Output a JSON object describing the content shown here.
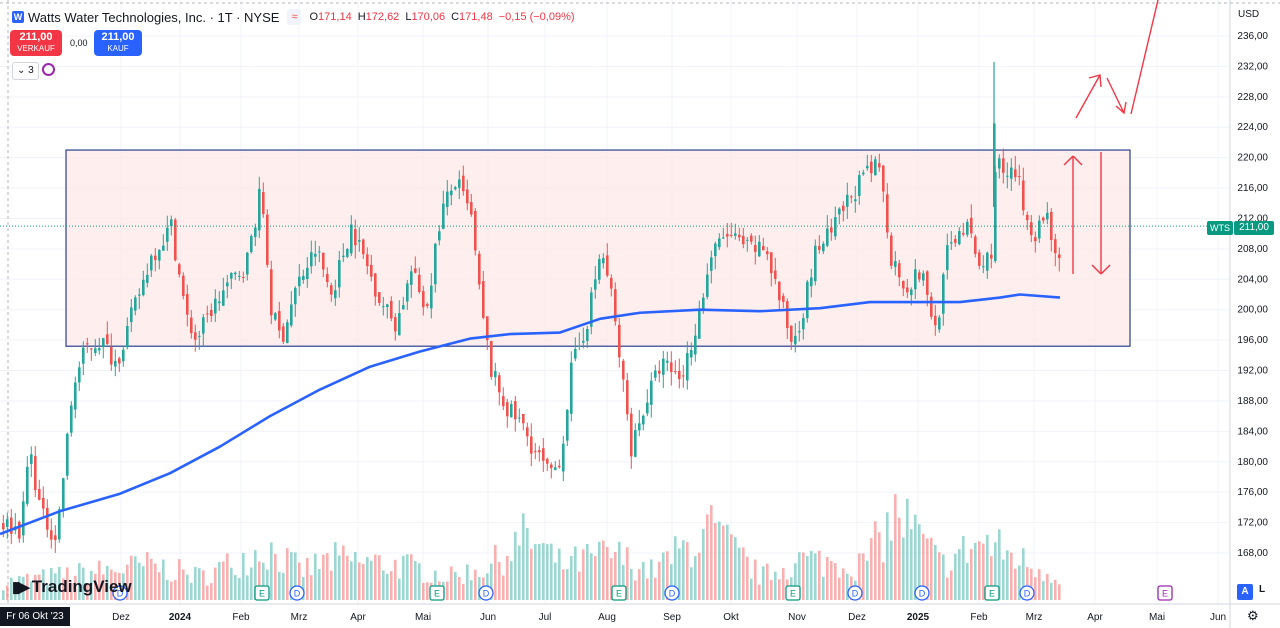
{
  "header": {
    "logo_icon": "watts-logo-icon",
    "title": "Watts Water Technologies, Inc. · 1T · NYSE",
    "tag": "≈",
    "ohlc": {
      "open_label": "O",
      "open": "171,14",
      "high_label": "H",
      "high": "172,62",
      "low_label": "L",
      "low": "170,06",
      "close_label": "C",
      "close": "171,48",
      "change": "−0,15 (−0,09%)"
    }
  },
  "trade": {
    "sell_price": "211,00",
    "sell_label": "VERKAUF",
    "spread": "0,00",
    "buy_price": "211,00",
    "buy_label": "KAUF"
  },
  "indicators": {
    "count_label": "3"
  },
  "axis": {
    "currency": "USD",
    "price_ticks": [
      "236,00",
      "232,00",
      "228,00",
      "224,00",
      "220,00",
      "216,00",
      "212,00",
      "208,00",
      "204,00",
      "200,00",
      "196,00",
      "192,00",
      "188,00",
      "184,00",
      "180,00",
      "176,00",
      "172,00",
      "168,00"
    ],
    "price_tick_values": [
      236,
      232,
      228,
      224,
      220,
      216,
      212,
      208,
      204,
      200,
      196,
      192,
      188,
      184,
      180,
      176,
      172,
      168
    ],
    "time_ticks": [
      "Dez",
      "2024",
      "Feb",
      "Mrz",
      "Apr",
      "Mai",
      "Jun",
      "Jul",
      "Aug",
      "Sep",
      "Okt",
      "Nov",
      "Dez",
      "2025",
      "Feb",
      "Mrz",
      "Apr",
      "Mai",
      "Jun"
    ],
    "crosshair_date": "Fr 06 Okt '23"
  },
  "last_price": {
    "symbol": "WTS",
    "value": "211,00",
    "color": "#089981"
  },
  "branding": {
    "name": "TradingView"
  },
  "controls": {
    "auto": "A",
    "log": "L",
    "settings_icon": "gear-icon"
  },
  "colors": {
    "up": "#26a69a",
    "down": "#ef5350",
    "ma": "#2962ff",
    "box_fill": "#fde8e8",
    "box_stroke": "#2a3f8f",
    "annot": "#f23645"
  },
  "chart_data": {
    "type": "candlestick",
    "title": "Watts Water Technologies, Inc. · 1T · NYSE",
    "ylim": [
      166,
      238
    ],
    "y_axis_side": "right",
    "grid": true,
    "price_range_box": {
      "top": 221,
      "bottom": 195.2
    },
    "moving_average": [
      [
        0,
        170.5
      ],
      [
        60,
        173.5
      ],
      [
        120,
        175.8
      ],
      [
        170,
        178.5
      ],
      [
        220,
        182
      ],
      [
        270,
        186
      ],
      [
        320,
        189.5
      ],
      [
        370,
        192.5
      ],
      [
        420,
        194.5
      ],
      [
        470,
        196.2
      ],
      [
        510,
        196.8
      ],
      [
        560,
        197
      ],
      [
        600,
        198.8
      ],
      [
        640,
        199.6
      ],
      [
        700,
        200
      ],
      [
        760,
        199.8
      ],
      [
        820,
        200.2
      ],
      [
        870,
        201
      ],
      [
        900,
        201
      ],
      [
        960,
        201
      ],
      [
        1000,
        201.6
      ],
      [
        1020,
        202
      ],
      [
        1060,
        201.6
      ]
    ],
    "candle_anchors": [
      [
        0,
        172
      ],
      [
        20,
        171
      ],
      [
        28,
        182
      ],
      [
        40,
        173
      ],
      [
        55,
        170
      ],
      [
        62,
        178
      ],
      [
        72,
        190
      ],
      [
        85,
        195
      ],
      [
        100,
        196
      ],
      [
        115,
        193
      ],
      [
        130,
        199
      ],
      [
        150,
        207
      ],
      [
        170,
        211
      ],
      [
        185,
        199
      ],
      [
        195,
        196
      ],
      [
        210,
        200
      ],
      [
        225,
        203
      ],
      [
        245,
        206
      ],
      [
        260,
        216
      ],
      [
        270,
        200
      ],
      [
        280,
        196
      ],
      [
        295,
        203
      ],
      [
        315,
        208
      ],
      [
        330,
        202
      ],
      [
        350,
        211
      ],
      [
        365,
        206
      ],
      [
        380,
        201
      ],
      [
        395,
        198
      ],
      [
        410,
        205
      ],
      [
        425,
        200
      ],
      [
        440,
        213
      ],
      [
        455,
        217
      ],
      [
        470,
        212
      ],
      [
        480,
        200
      ],
      [
        490,
        192
      ],
      [
        505,
        187
      ],
      [
        520,
        185
      ],
      [
        535,
        181
      ],
      [
        550,
        178
      ],
      [
        560,
        181
      ],
      [
        570,
        192
      ],
      [
        585,
        198
      ],
      [
        600,
        208
      ],
      [
        610,
        202
      ],
      [
        620,
        192
      ],
      [
        630,
        182
      ],
      [
        645,
        188
      ],
      [
        660,
        193
      ],
      [
        680,
        191
      ],
      [
        695,
        198
      ],
      [
        710,
        207
      ],
      [
        725,
        210
      ],
      [
        745,
        208
      ],
      [
        765,
        208
      ],
      [
        775,
        203
      ],
      [
        790,
        196
      ],
      [
        800,
        199
      ],
      [
        815,
        208
      ],
      [
        830,
        210
      ],
      [
        845,
        214
      ],
      [
        860,
        217
      ],
      [
        878,
        219
      ],
      [
        890,
        207
      ],
      [
        905,
        203
      ],
      [
        920,
        205
      ],
      [
        935,
        197
      ],
      [
        945,
        207
      ],
      [
        955,
        210
      ],
      [
        965,
        211
      ],
      [
        980,
        205
      ],
      [
        990,
        208
      ],
      [
        995,
        220
      ],
      [
        1005,
        217
      ],
      [
        1015,
        218
      ],
      [
        1025,
        212
      ],
      [
        1035,
        210
      ],
      [
        1045,
        213
      ],
      [
        1055,
        207
      ],
      [
        1060,
        208
      ]
    ],
    "volume_anchors": [
      [
        0,
        0.15
      ],
      [
        100,
        0.25
      ],
      [
        150,
        0.3
      ],
      [
        200,
        0.2
      ],
      [
        265,
        0.45
      ],
      [
        300,
        0.25
      ],
      [
        330,
        0.35
      ],
      [
        400,
        0.3
      ],
      [
        450,
        0.2
      ],
      [
        490,
        0.3
      ],
      [
        525,
        0.55
      ],
      [
        560,
        0.3
      ],
      [
        610,
        0.4
      ],
      [
        650,
        0.25
      ],
      [
        710,
        0.6
      ],
      [
        760,
        0.2
      ],
      [
        800,
        0.35
      ],
      [
        860,
        0.3
      ],
      [
        897,
        0.75
      ],
      [
        940,
        0.3
      ],
      [
        978,
        0.5
      ],
      [
        995,
        0.45
      ],
      [
        1030,
        0.3
      ],
      [
        1060,
        0.2
      ]
    ],
    "event_markers": [
      {
        "x": 120,
        "type": "D"
      },
      {
        "x": 262,
        "type": "E"
      },
      {
        "x": 297,
        "type": "D"
      },
      {
        "x": 437,
        "type": "E"
      },
      {
        "x": 486,
        "type": "D"
      },
      {
        "x": 619,
        "type": "E"
      },
      {
        "x": 672,
        "type": "D"
      },
      {
        "x": 793,
        "type": "E"
      },
      {
        "x": 855,
        "type": "D"
      },
      {
        "x": 922,
        "type": "D"
      },
      {
        "x": 992,
        "type": "E"
      },
      {
        "x": 1027,
        "type": "D"
      },
      {
        "x": 1165,
        "type": "E"
      }
    ],
    "annotations": [
      "red arrows projecting a breakout above the range"
    ]
  }
}
